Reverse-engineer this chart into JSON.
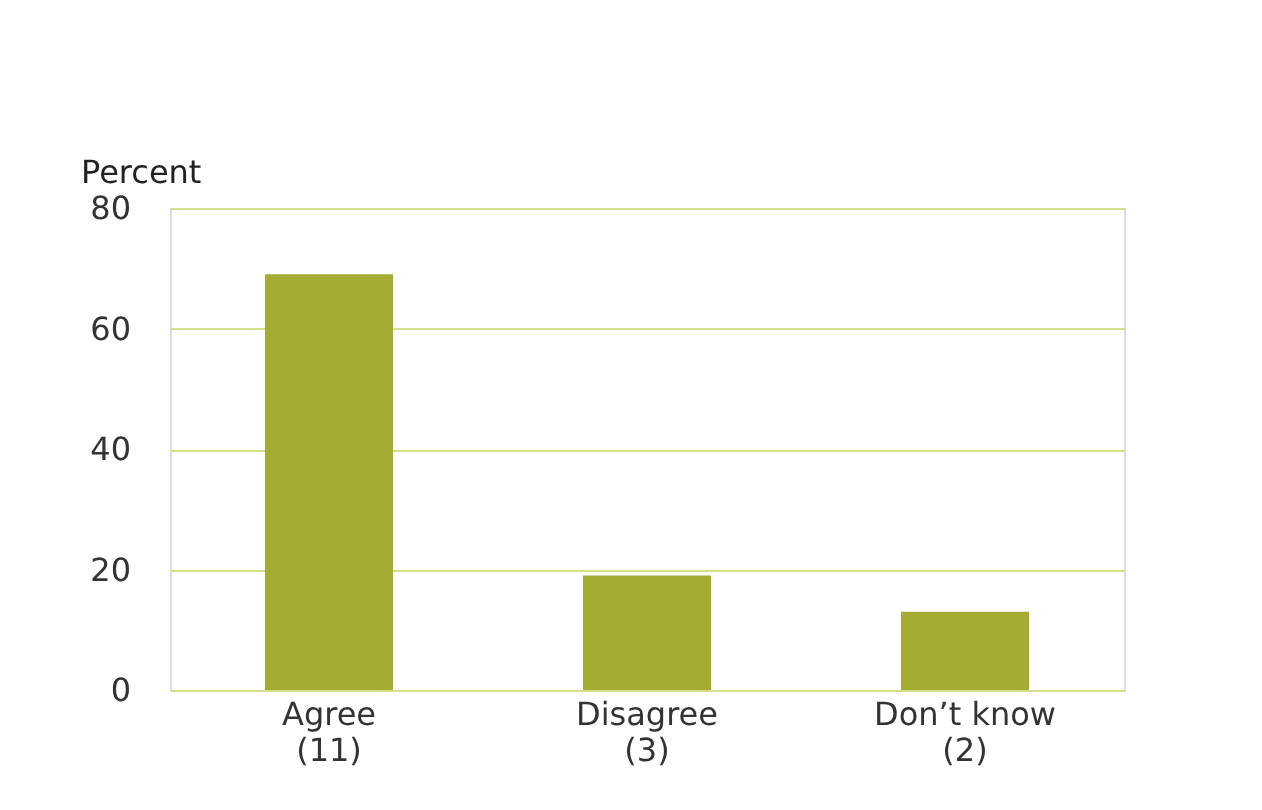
{
  "chart_data": {
    "type": "bar",
    "ylabel": "Percent",
    "categories": [
      "Agree\n(11)",
      "Disagree\n(3)",
      "Don’t know\n(2)"
    ],
    "values": [
      69,
      19,
      13
    ],
    "color": "#a4ad32",
    "ylim": [
      0,
      80
    ],
    "yticks": [
      0,
      20,
      40,
      60,
      80
    ],
    "grid": "y"
  }
}
